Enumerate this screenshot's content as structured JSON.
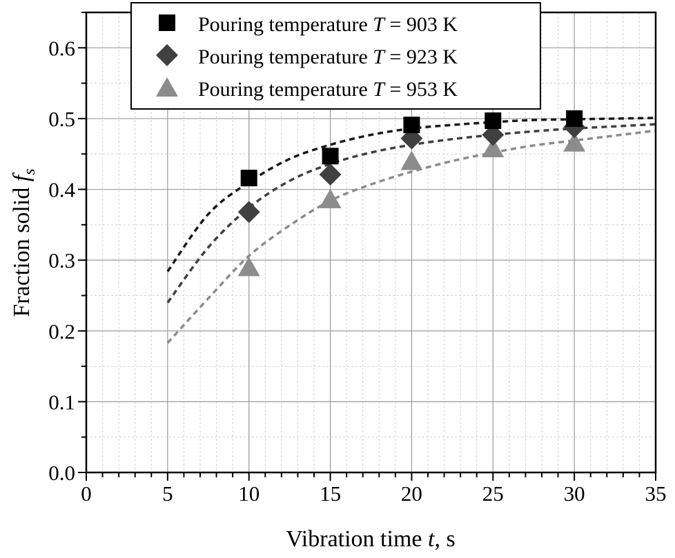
{
  "chart_data": {
    "type": "scatter",
    "xlabel_prefix": "Vibration time ",
    "xlabel_var": "t",
    "xlabel_suffix": ", s",
    "ylabel_prefix": "Fraction solid ",
    "ylabel_var": "f",
    "ylabel_sub": "s",
    "xlim": [
      0,
      35
    ],
    "ylim": [
      0,
      0.65
    ],
    "xticks": [
      "0",
      "5",
      "10",
      "15",
      "20",
      "25",
      "30",
      "35"
    ],
    "yticks": [
      "0.0",
      "0.1",
      "0.2",
      "0.3",
      "0.4",
      "0.5",
      "0.6"
    ],
    "grid": true,
    "legend_position": "top-center",
    "series": [
      {
        "name_prefix": "Pouring temperature ",
        "name_var": "T",
        "name_suffix": " = 903 K",
        "marker": "square",
        "color": "#000000",
        "fit_color": "#1a1a1a",
        "x": [
          10,
          15,
          20,
          25,
          30
        ],
        "y": [
          0.416,
          0.447,
          0.491,
          0.497,
          0.5
        ],
        "fit": {
          "x": [
            5,
            7.5,
            10,
            12.5,
            15,
            17.5,
            20,
            22.5,
            25,
            27.5,
            30,
            32.5,
            35
          ],
          "y": [
            0.284,
            0.365,
            0.41,
            0.443,
            0.463,
            0.477,
            0.486,
            0.491,
            0.495,
            0.498,
            0.499,
            0.5,
            0.501
          ]
        }
      },
      {
        "name_prefix": "Pouring temperature ",
        "name_var": "T",
        "name_suffix": " = 923 K",
        "marker": "diamond",
        "color": "#404040",
        "fit_color": "#404040",
        "x": [
          10,
          15,
          20,
          25,
          30
        ],
        "y": [
          0.368,
          0.421,
          0.472,
          0.477,
          0.488
        ],
        "fit": {
          "x": [
            5,
            7.5,
            10,
            12.5,
            15,
            17.5,
            20,
            22.5,
            25,
            27.5,
            30,
            32.5,
            35
          ],
          "y": [
            0.24,
            0.318,
            0.374,
            0.412,
            0.436,
            0.452,
            0.463,
            0.471,
            0.477,
            0.482,
            0.486,
            0.489,
            0.492
          ]
        }
      },
      {
        "name_prefix": "Pouring temperature ",
        "name_var": "T",
        "name_suffix": " = 953 K",
        "marker": "triangle",
        "color": "#8c8c8c",
        "fit_color": "#8c8c8c",
        "x": [
          10,
          15,
          20,
          25,
          30
        ],
        "y": [
          0.29,
          0.386,
          0.44,
          0.458,
          0.466
        ],
        "fit": {
          "x": [
            5,
            7.5,
            10,
            12.5,
            15,
            17.5,
            20,
            22.5,
            25,
            27.5,
            30,
            32.5,
            35
          ],
          "y": [
            0.183,
            0.246,
            0.306,
            0.349,
            0.384,
            0.407,
            0.425,
            0.44,
            0.452,
            0.462,
            0.469,
            0.476,
            0.483
          ]
        }
      }
    ]
  }
}
